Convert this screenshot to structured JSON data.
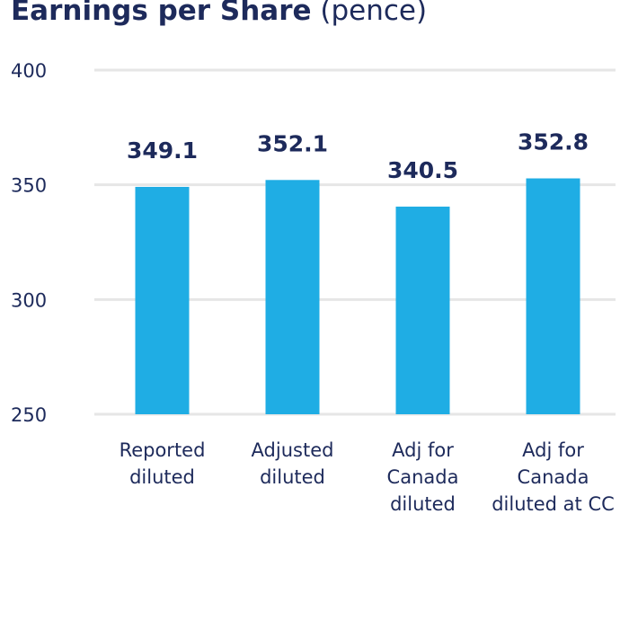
{
  "chart_data": {
    "type": "bar",
    "title": "Earnings per Share",
    "subtitle": "(pence)",
    "categories": [
      "Reported diluted",
      "Adjusted diluted",
      "Adj for Canada diluted",
      "Adj for Canada diluted at CC"
    ],
    "values": [
      349.1,
      352.1,
      340.5,
      352.8
    ],
    "color": "#1fade4",
    "ylim": [
      250,
      400
    ],
    "yticks": [
      250,
      300,
      350,
      400
    ],
    "grid": true
  }
}
